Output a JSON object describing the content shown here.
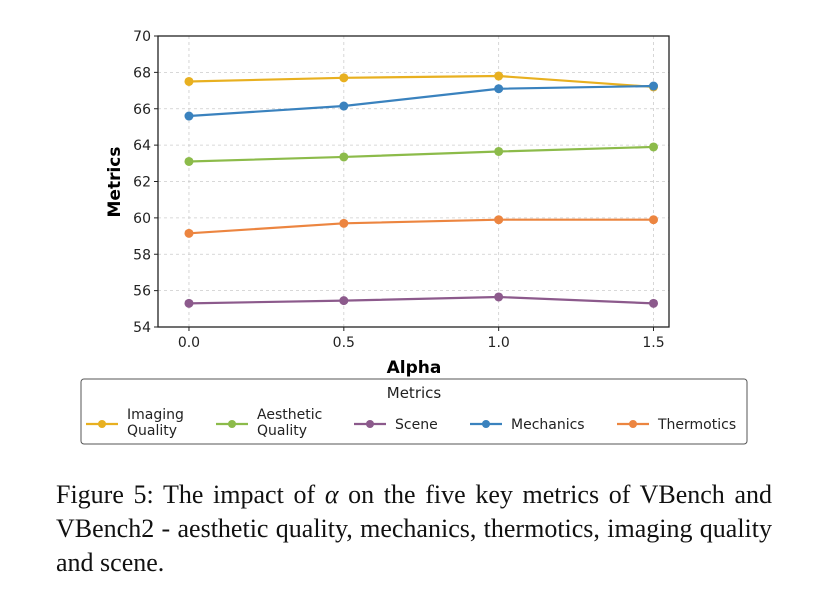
{
  "chart_data": {
    "type": "line",
    "title": "",
    "xlabel": "Alpha",
    "ylabel": "Metrics",
    "x": [
      0.0,
      0.5,
      1.0,
      1.5
    ],
    "x_tick_labels": [
      "0.0",
      "0.5",
      "1.0",
      "1.5"
    ],
    "y_ticks": [
      54,
      56,
      58,
      60,
      62,
      64,
      66,
      68,
      70
    ],
    "y_tick_labels": [
      "54",
      "56",
      "58",
      "60",
      "62",
      "64",
      "66",
      "68",
      "70"
    ],
    "xlim": [
      -0.1,
      1.55
    ],
    "ylim": [
      54,
      70
    ],
    "grid": true,
    "legend": {
      "title": "Metrics",
      "placement": "bottom-outside",
      "entries": [
        {
          "label_lines": [
            "Imaging",
            "Quality"
          ]
        },
        {
          "label_lines": [
            "Aesthetic",
            "Quality"
          ]
        },
        {
          "label_lines": [
            "Scene"
          ]
        },
        {
          "label_lines": [
            "Mechanics"
          ]
        },
        {
          "label_lines": [
            "Thermotics"
          ]
        }
      ]
    },
    "series": [
      {
        "name": "Imaging Quality",
        "color": "#e8b020",
        "values": [
          67.5,
          67.7,
          67.8,
          67.2
        ]
      },
      {
        "name": "Aesthetic Quality",
        "color": "#8cbb4a",
        "values": [
          63.1,
          63.35,
          63.65,
          63.9
        ]
      },
      {
        "name": "Scene",
        "color": "#8c5a8c",
        "values": [
          55.3,
          55.45,
          55.65,
          55.3
        ]
      },
      {
        "name": "Mechanics",
        "color": "#3a82be",
        "values": [
          65.6,
          66.15,
          67.1,
          67.25
        ]
      },
      {
        "name": "Thermotics",
        "color": "#ec8540",
        "values": [
          59.15,
          59.7,
          59.9,
          59.9
        ]
      }
    ]
  },
  "caption": {
    "prefix": "Figure 5: The impact of ",
    "symbol": "α",
    "suffix": " on the five key metrics of VBench and VBench2 - aesthetic quality, mechanics, thermotics, imaging quality and scene."
  }
}
